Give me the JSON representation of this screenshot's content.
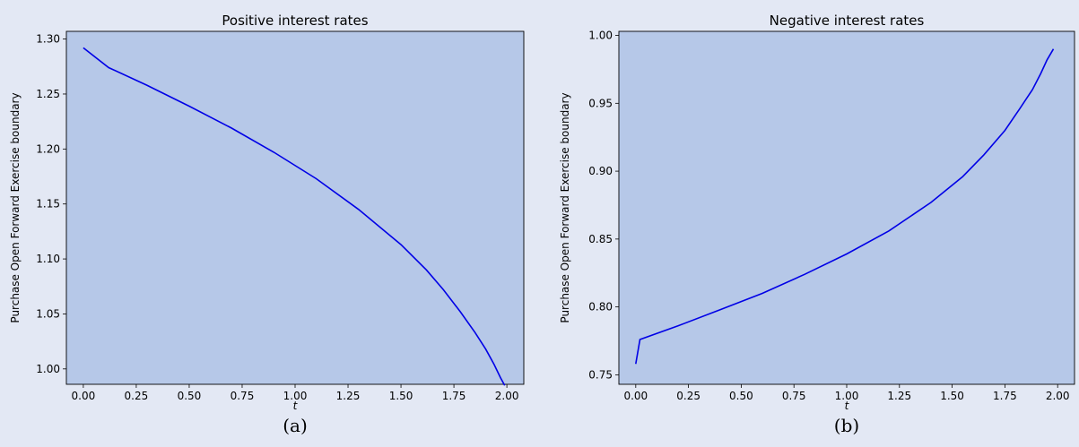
{
  "figure": {
    "background": "#e3e8f4",
    "plot_background": "#b6c8e8",
    "line_color": "#0000e6"
  },
  "chart_data": [
    {
      "type": "line",
      "title": "Positive interest rates",
      "xlabel": "t",
      "ylabel": "Purchase Open Forward Exercise boundary",
      "caption": "(a)",
      "xlim": [
        -0.08,
        2.08
      ],
      "ylim": [
        0.986,
        1.307
      ],
      "xticks": [
        0.0,
        0.25,
        0.5,
        0.75,
        1.0,
        1.25,
        1.5,
        1.75,
        2.0
      ],
      "xtick_labels": [
        "0.00",
        "0.25",
        "0.50",
        "0.75",
        "1.00",
        "1.25",
        "1.50",
        "1.75",
        "2.00"
      ],
      "yticks": [
        1.0,
        1.05,
        1.1,
        1.15,
        1.2,
        1.25,
        1.3
      ],
      "ytick_labels": [
        "1.00",
        "1.05",
        "1.10",
        "1.15",
        "1.20",
        "1.25",
        "1.30"
      ],
      "grid": false,
      "series": [
        {
          "x": [
            0.0,
            0.12,
            0.3,
            0.5,
            0.7,
            0.9,
            1.1,
            1.3,
            1.5,
            1.62,
            1.7,
            1.78,
            1.85,
            1.9,
            1.94,
            1.97,
            1.99
          ],
          "y": [
            1.292,
            1.274,
            1.258,
            1.239,
            1.219,
            1.197,
            1.173,
            1.145,
            1.113,
            1.09,
            1.072,
            1.052,
            1.033,
            1.018,
            1.004,
            0.992,
            0.985
          ]
        }
      ]
    },
    {
      "type": "line",
      "title": "Negative interest rates",
      "xlabel": "t",
      "ylabel": "Purchase Open Forward Exercise boundary",
      "caption": "(b)",
      "xlim": [
        -0.08,
        2.08
      ],
      "ylim": [
        0.743,
        1.003
      ],
      "xticks": [
        0.0,
        0.25,
        0.5,
        0.75,
        1.0,
        1.25,
        1.5,
        1.75,
        2.0
      ],
      "xtick_labels": [
        "0.00",
        "0.25",
        "0.50",
        "0.75",
        "1.00",
        "1.25",
        "1.50",
        "1.75",
        "2.00"
      ],
      "yticks": [
        0.75,
        0.8,
        0.85,
        0.9,
        0.95,
        1.0
      ],
      "ytick_labels": [
        "0.75",
        "0.80",
        "0.85",
        "0.90",
        "0.95",
        "1.00"
      ],
      "grid": false,
      "series": [
        {
          "x": [
            0.0,
            0.02,
            0.2,
            0.4,
            0.6,
            0.8,
            1.0,
            1.2,
            1.4,
            1.55,
            1.65,
            1.75,
            1.82,
            1.88,
            1.92,
            1.95,
            1.98
          ],
          "y": [
            0.758,
            0.776,
            0.786,
            0.798,
            0.81,
            0.824,
            0.839,
            0.856,
            0.877,
            0.896,
            0.912,
            0.93,
            0.946,
            0.96,
            0.972,
            0.982,
            0.99
          ]
        }
      ]
    }
  ]
}
